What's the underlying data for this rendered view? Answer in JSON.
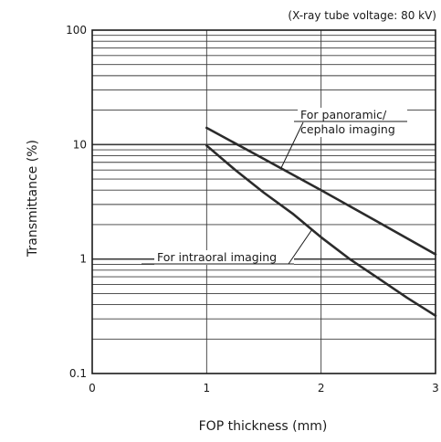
{
  "chart_data": {
    "type": "line",
    "note": "(X-ray tube voltage: 80 kV)",
    "xlabel": "FOP thickness (mm)",
    "ylabel": "Transmittance (%)",
    "xlim": [
      0,
      3
    ],
    "ylim": [
      0.1,
      100
    ],
    "y_scale": "log",
    "grid": true,
    "x_ticks": [
      "0",
      "1",
      "2",
      "3"
    ],
    "y_ticks": [
      "0.1",
      "1",
      "10",
      "100"
    ],
    "series": [
      {
        "name": "For panoramic/ cephalo imaging",
        "x": [
          1.0,
          1.5,
          2.0,
          2.5,
          3.0
        ],
        "y": [
          14,
          7.5,
          4.0,
          2.1,
          1.1
        ]
      },
      {
        "name": "For intraoral imaging",
        "x": [
          1.0,
          1.25,
          1.5,
          1.75,
          2.0,
          2.25,
          2.5,
          2.75,
          3.0
        ],
        "y": [
          9.8,
          6.0,
          3.8,
          2.5,
          1.55,
          1.0,
          0.68,
          0.46,
          0.32
        ]
      }
    ],
    "annotations": [
      {
        "series": 0,
        "lines": [
          "For panoramic/",
          "cephalo imaging"
        ]
      },
      {
        "series": 1,
        "lines": [
          "For intraoral imaging"
        ]
      }
    ],
    "colors": {
      "line": "#2b2b2b",
      "grid": "#3a3a3a",
      "text": "#1a1a1a"
    }
  }
}
